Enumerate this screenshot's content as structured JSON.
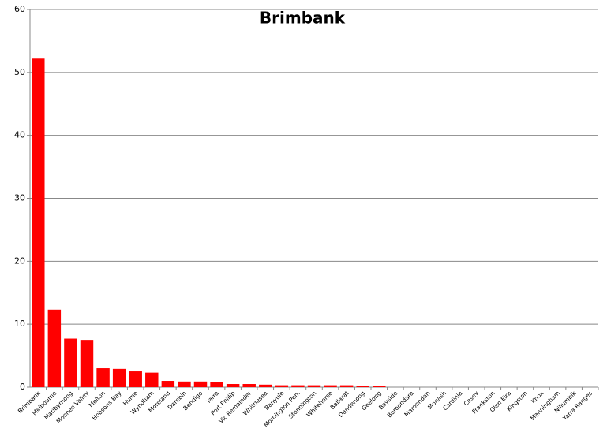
{
  "chart_data": {
    "type": "bar",
    "title": "Brimbank",
    "categories": [
      "Brimbank",
      "Melbourne",
      "Maribyrnong",
      "Moonee Valley",
      "Melton",
      "Hobsons Bay",
      "Hume",
      "Wyndham",
      "Moreland",
      "Darebin",
      "Bendigo",
      "Yarra",
      "Port Phillip",
      "Vic Remainder",
      "Whittlesea",
      "Banyule",
      "Mornington Pen.",
      "Stonnington",
      "Whitehorse",
      "Ballarat",
      "Dandenong",
      "Geelong",
      "Bayside",
      "Boroondara",
      "Maroondah",
      "Monash",
      "Cardinia",
      "Casey",
      "Frankston",
      "Glen Eira",
      "Kingston",
      "Knox",
      "Manningham",
      "Nillumbik",
      "Yarra Ranges"
    ],
    "values": [
      52.2,
      12.3,
      7.7,
      7.5,
      3.0,
      2.9,
      2.5,
      2.3,
      1.0,
      0.9,
      0.9,
      0.8,
      0.5,
      0.5,
      0.4,
      0.3,
      0.3,
      0.3,
      0.3,
      0.3,
      0.2,
      0.2,
      0,
      0,
      0,
      0,
      0,
      0,
      0,
      0,
      0,
      0,
      0,
      0,
      0
    ],
    "color": "#ff0000",
    "ylim": [
      0,
      60
    ],
    "yticks": [
      0,
      10,
      20,
      30,
      40,
      50,
      60
    ],
    "grid": true
  }
}
